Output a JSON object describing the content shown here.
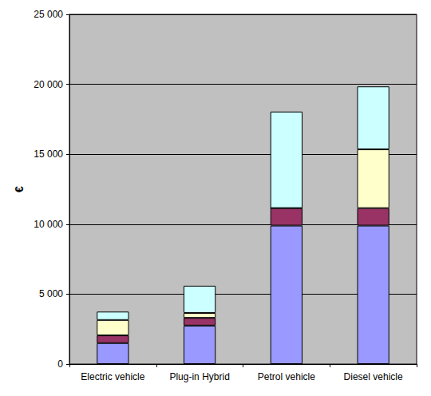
{
  "chart_data": {
    "type": "bar",
    "stacked": true,
    "grid": true,
    "data_labels": false,
    "y_label": "€",
    "categories": [
      "Electric vehicle",
      "Plug-in Hybrid",
      "Petrol vehicle",
      "Diesel vehicle"
    ],
    "series": [
      {
        "color": "#9999ff",
        "values": [
          1500,
          2750,
          9900,
          9900
        ]
      },
      {
        "color": "#993366",
        "values": [
          550,
          550,
          1250,
          1250
        ]
      },
      {
        "color": "#ffffcc",
        "values": [
          1100,
          350,
          0,
          4200
        ]
      },
      {
        "color": "#ccffff",
        "values": [
          600,
          1950,
          6900,
          4500
        ]
      }
    ],
    "ylim": [
      0,
      25000
    ],
    "yticks": [
      0,
      {
        "value": 5000,
        "label": "5 000"
      },
      {
        "value": 10000,
        "label": "10 000"
      },
      {
        "value": 15000,
        "label": "15 000"
      },
      {
        "value": 20000,
        "label": "20 000"
      },
      {
        "value": 25000,
        "label": "25 000"
      }
    ]
  }
}
